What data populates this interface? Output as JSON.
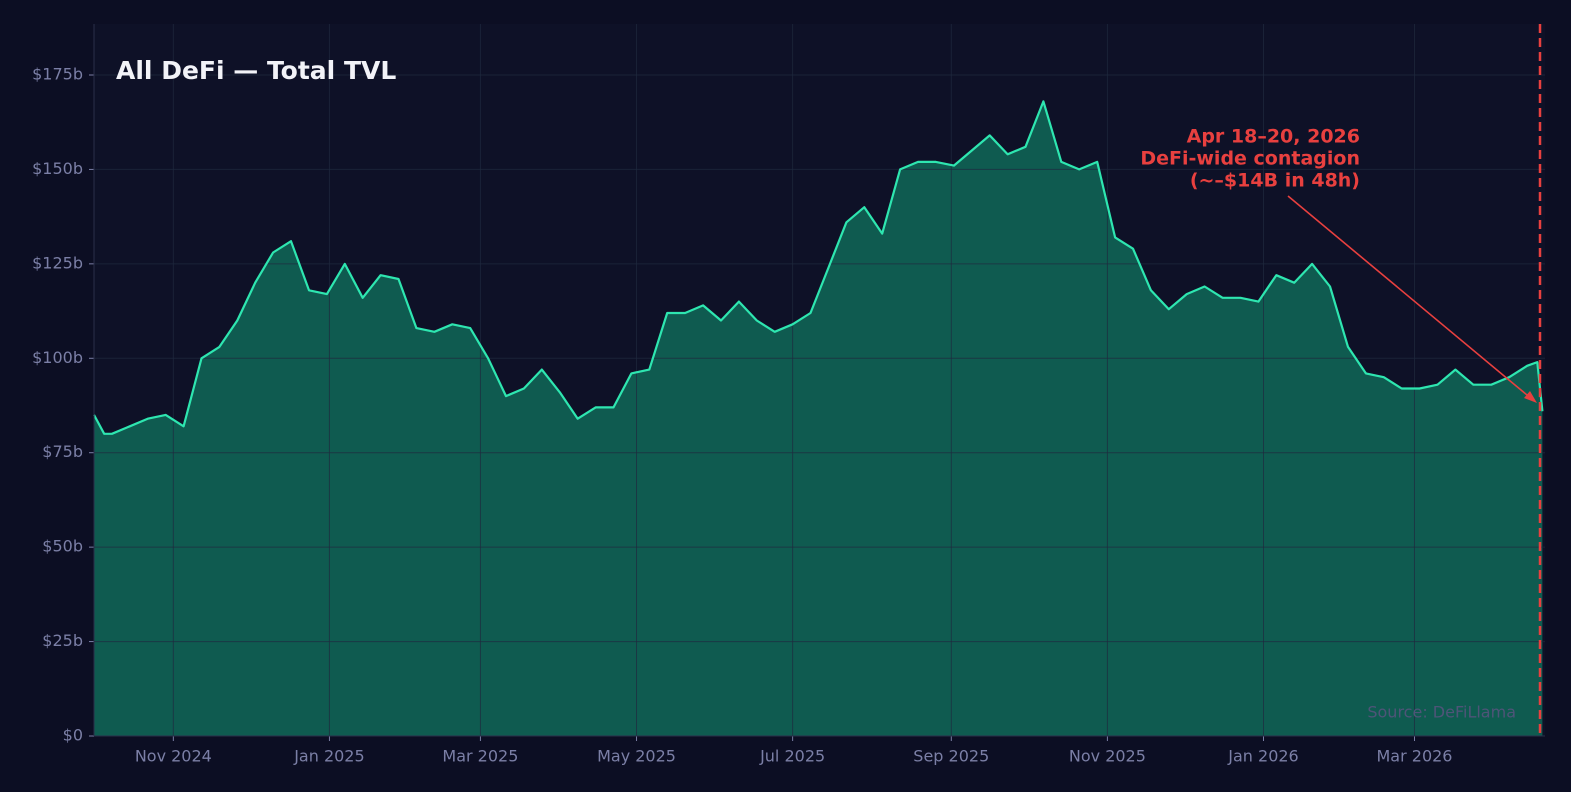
{
  "chart_data": {
    "type": "area",
    "title": "All DeFi — Total TVL",
    "source": "Source: DeFiLlama",
    "annotation": [
      "Apr 18–20, 2026",
      "DeFi-wide contagion",
      "(~–$14B in 48h)"
    ],
    "color": "#2ee6b0",
    "fill_color": "#0f5b50",
    "annotation_color": "#e8403f",
    "grid": true,
    "xlim": [
      "2024-10-01",
      "2026-04-21"
    ],
    "ylim": [
      0,
      188.5
    ],
    "xticks": [
      {
        "value": "2024-11-01",
        "label": "Nov 2024"
      },
      {
        "value": "2025-01-01",
        "label": "Jan 2025"
      },
      {
        "value": "2025-03-01",
        "label": "Mar 2025"
      },
      {
        "value": "2025-05-01",
        "label": "May 2025"
      },
      {
        "value": "2025-07-01",
        "label": "Jul 2025"
      },
      {
        "value": "2025-09-01",
        "label": "Sep 2025"
      },
      {
        "value": "2025-11-01",
        "label": "Nov 2025"
      },
      {
        "value": "2026-01-01",
        "label": "Jan 2026"
      },
      {
        "value": "2026-03-01",
        "label": "Mar 2026"
      }
    ],
    "yticks": [
      {
        "value": 0,
        "label": "$0"
      },
      {
        "value": 25,
        "label": "$25b"
      },
      {
        "value": 50,
        "label": "$50b"
      },
      {
        "value": 75,
        "label": "$75b"
      },
      {
        "value": 100,
        "label": "$100b"
      },
      {
        "value": 125,
        "label": "$125b"
      },
      {
        "value": 150,
        "label": "$150b"
      },
      {
        "value": 175,
        "label": "$175b"
      }
    ],
    "x": [
      "2024-10-01",
      "2024-10-05",
      "2024-10-08",
      "2024-10-15",
      "2024-10-22",
      "2024-10-29",
      "2024-11-05",
      "2024-11-12",
      "2024-11-19",
      "2024-11-26",
      "2024-12-03",
      "2024-12-10",
      "2024-12-17",
      "2024-12-24",
      "2024-12-31",
      "2025-01-07",
      "2025-01-14",
      "2025-01-21",
      "2025-01-28",
      "2025-02-04",
      "2025-02-11",
      "2025-02-18",
      "2025-02-25",
      "2025-03-04",
      "2025-03-11",
      "2025-03-18",
      "2025-03-25",
      "2025-04-01",
      "2025-04-08",
      "2025-04-15",
      "2025-04-22",
      "2025-04-29",
      "2025-05-06",
      "2025-05-13",
      "2025-05-20",
      "2025-05-27",
      "2025-06-03",
      "2025-06-10",
      "2025-06-17",
      "2025-06-24",
      "2025-07-01",
      "2025-07-08",
      "2025-07-15",
      "2025-07-22",
      "2025-07-29",
      "2025-08-05",
      "2025-08-12",
      "2025-08-19",
      "2025-08-26",
      "2025-09-02",
      "2025-09-09",
      "2025-09-16",
      "2025-09-23",
      "2025-09-30",
      "2025-10-07",
      "2025-10-14",
      "2025-10-21",
      "2025-10-28",
      "2025-11-04",
      "2025-11-11",
      "2025-11-18",
      "2025-11-25",
      "2025-12-02",
      "2025-12-09",
      "2025-12-16",
      "2025-12-23",
      "2025-12-30",
      "2026-01-06",
      "2026-01-13",
      "2026-01-20",
      "2026-01-27",
      "2026-02-03",
      "2026-02-10",
      "2026-02-17",
      "2026-02-24",
      "2026-03-03",
      "2026-03-10",
      "2026-03-17",
      "2026-03-24",
      "2026-03-31",
      "2026-04-07",
      "2026-04-14",
      "2026-04-18",
      "2026-04-20"
    ],
    "values": [
      85,
      80,
      80,
      82,
      84,
      85,
      82,
      100,
      103,
      110,
      120,
      128,
      131,
      118,
      117,
      125,
      116,
      122,
      121,
      108,
      107,
      109,
      108,
      100,
      90,
      92,
      97,
      91,
      84,
      87,
      87,
      96,
      97,
      112,
      112,
      114,
      110,
      115,
      110,
      107,
      109,
      112,
      124,
      136,
      140,
      133,
      150,
      152,
      152,
      151,
      155,
      159,
      154,
      156,
      168,
      152,
      150,
      152,
      132,
      129,
      118,
      113,
      117,
      119,
      116,
      116,
      115,
      122,
      120,
      125,
      119,
      103,
      96,
      95,
      92,
      92,
      93,
      97,
      93,
      93,
      95,
      98,
      99,
      86
    ]
  }
}
